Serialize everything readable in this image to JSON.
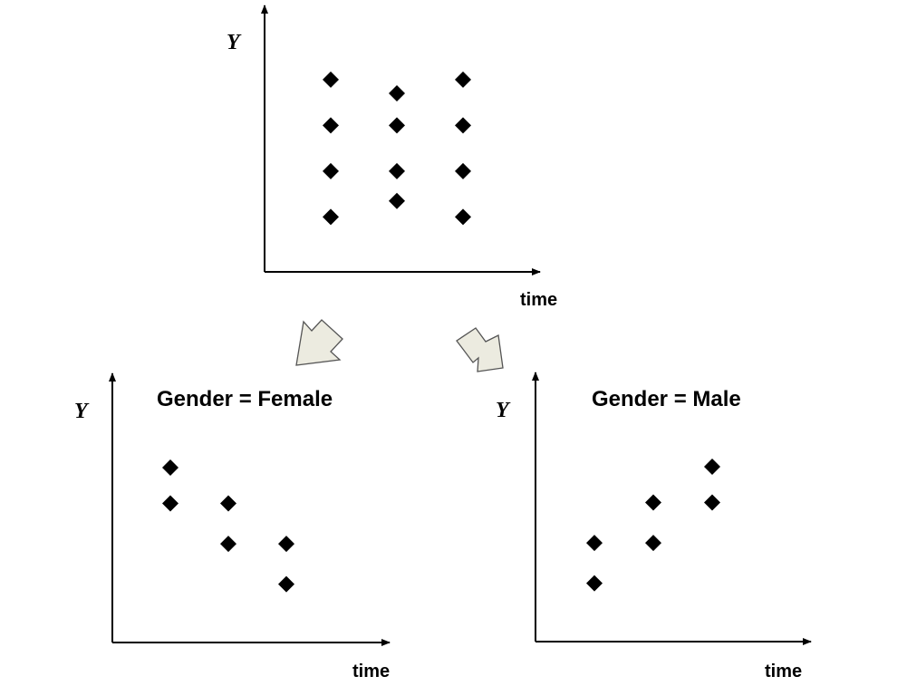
{
  "chart_data": [
    {
      "type": "scatter",
      "title": "",
      "xlabel": "time",
      "ylabel": "Y",
      "xlim": [
        0,
        4
      ],
      "ylim": [
        0,
        5
      ],
      "grid": false,
      "points": [
        {
          "x": 1,
          "y": 4.2
        },
        {
          "x": 1,
          "y": 3.2
        },
        {
          "x": 1,
          "y": 2.2
        },
        {
          "x": 1,
          "y": 1.2
        },
        {
          "x": 2,
          "y": 3.9
        },
        {
          "x": 2,
          "y": 3.2
        },
        {
          "x": 2,
          "y": 2.2
        },
        {
          "x": 2,
          "y": 1.55
        },
        {
          "x": 3,
          "y": 4.2
        },
        {
          "x": 3,
          "y": 3.2
        },
        {
          "x": 3,
          "y": 2.2
        },
        {
          "x": 3,
          "y": 1.2
        }
      ]
    },
    {
      "type": "scatter",
      "title": "Gender = Female",
      "xlabel": "time",
      "ylabel": "Y",
      "xlim": [
        0,
        4
      ],
      "ylim": [
        0,
        5
      ],
      "grid": false,
      "points": [
        {
          "x": 1,
          "y": 3.9
        },
        {
          "x": 1,
          "y": 3.1
        },
        {
          "x": 2,
          "y": 3.1
        },
        {
          "x": 2,
          "y": 2.2
        },
        {
          "x": 3,
          "y": 2.2
        },
        {
          "x": 3,
          "y": 1.3
        }
      ]
    },
    {
      "type": "scatter",
      "title": "Gender = Male",
      "xlabel": "time",
      "ylabel": "Y",
      "xlim": [
        0,
        4
      ],
      "ylim": [
        0,
        5
      ],
      "grid": false,
      "points": [
        {
          "x": 1,
          "y": 2.2
        },
        {
          "x": 1,
          "y": 1.3
        },
        {
          "x": 2,
          "y": 3.1
        },
        {
          "x": 2,
          "y": 2.2
        },
        {
          "x": 3,
          "y": 3.9
        },
        {
          "x": 3,
          "y": 3.1
        }
      ]
    }
  ]
}
